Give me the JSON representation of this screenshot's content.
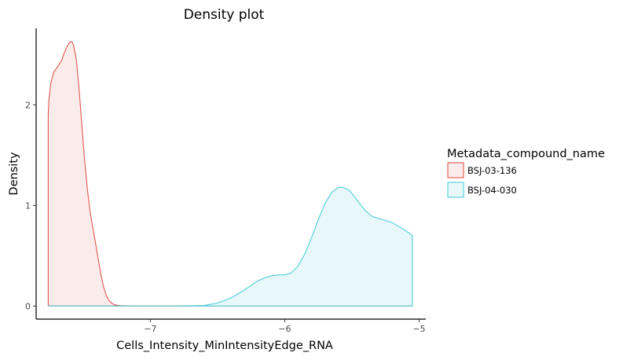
{
  "chart_data": {
    "type": "area",
    "title": "Density plot",
    "xlabel": "Cells_Intensity_MinIntensityEdge_RNA",
    "ylabel": "Density",
    "xlim": [
      -7.85,
      -4.95
    ],
    "ylim": [
      -0.13,
      2.76
    ],
    "x_ticks": [
      -7,
      -6,
      -5
    ],
    "x_tick_labels": [
      "−7",
      "−6",
      "−5"
    ],
    "y_ticks": [
      0,
      1,
      2
    ],
    "y_tick_labels": [
      "0",
      "1",
      "2"
    ],
    "grid": false,
    "legend": {
      "title": "Metadata_compound_name",
      "placement": "right"
    },
    "series": [
      {
        "name": "BSJ-03-136",
        "color": "#e0574e",
        "fill": "#fbeceb",
        "x": [
          -7.76,
          -7.755,
          -7.74,
          -7.72,
          -7.7,
          -7.68,
          -7.66,
          -7.64,
          -7.62,
          -7.6,
          -7.59,
          -7.58,
          -7.57,
          -7.55,
          -7.53,
          -7.51,
          -7.49,
          -7.47,
          -7.45,
          -7.43,
          -7.41,
          -7.39,
          -7.37,
          -7.35,
          -7.33,
          -7.31,
          -7.29,
          -7.27,
          -7.25,
          -7.23,
          -7.2,
          -7.15,
          -7.1,
          -7.0,
          -6.8,
          -6.6,
          -6.4,
          -6.2,
          -6.0,
          -5.8,
          -5.6,
          -5.4,
          -5.2,
          -5.05
        ],
        "y": [
          1.9,
          2.05,
          2.22,
          2.32,
          2.36,
          2.4,
          2.44,
          2.52,
          2.58,
          2.62,
          2.63,
          2.62,
          2.58,
          2.44,
          2.15,
          1.8,
          1.46,
          1.18,
          0.95,
          0.79,
          0.64,
          0.48,
          0.33,
          0.2,
          0.11,
          0.06,
          0.03,
          0.015,
          0.008,
          0.004,
          0.002,
          0.0,
          0.0,
          0.0,
          0.0,
          0.0,
          0.0,
          0.0,
          0.0,
          0.0,
          0.0,
          0.0,
          0.0,
          0.0
        ]
      },
      {
        "name": "BSJ-04-030",
        "color": "#4fcfd8",
        "fill": "#e8f7f9",
        "x": [
          -7.76,
          -7.4,
          -7.0,
          -6.8,
          -6.6,
          -6.5,
          -6.4,
          -6.3,
          -6.2,
          -6.15,
          -6.1,
          -6.05,
          -6.0,
          -5.95,
          -5.9,
          -5.85,
          -5.8,
          -5.75,
          -5.7,
          -5.65,
          -5.6,
          -5.57,
          -5.55,
          -5.52,
          -5.5,
          -5.45,
          -5.4,
          -5.35,
          -5.3,
          -5.25,
          -5.2,
          -5.15,
          -5.1,
          -5.05
        ],
        "y": [
          0.0,
          0.0,
          0.0,
          0.0,
          0.005,
          0.03,
          0.08,
          0.16,
          0.25,
          0.28,
          0.3,
          0.31,
          0.31,
          0.33,
          0.4,
          0.52,
          0.68,
          0.86,
          1.02,
          1.13,
          1.18,
          1.18,
          1.17,
          1.15,
          1.12,
          1.03,
          0.95,
          0.89,
          0.87,
          0.85,
          0.83,
          0.79,
          0.75,
          0.7
        ]
      }
    ]
  }
}
